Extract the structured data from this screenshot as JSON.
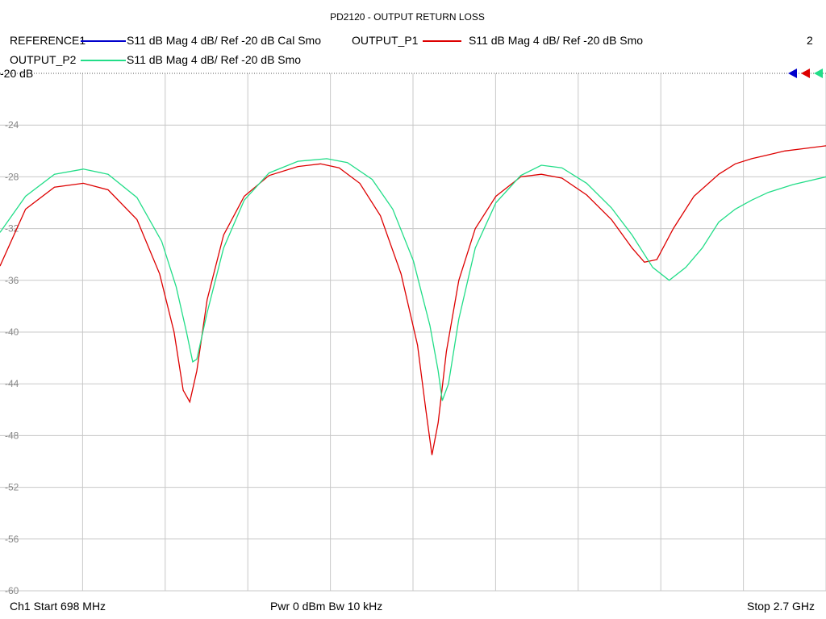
{
  "chart_data": {
    "type": "line",
    "title": "PD2120 - OUTPUT RETURN LOSS",
    "ylim": [
      -60,
      -20
    ],
    "yticks": [
      -24,
      -28,
      -32,
      -36,
      -40,
      -44,
      -48,
      -52,
      -56,
      -60
    ],
    "ref_label": "-20 dB",
    "xlim_mhz": [
      698,
      2700
    ],
    "grid": true,
    "legend_position": "top",
    "channel_number": "2",
    "legend": [
      {
        "name": "REFERENCE1",
        "desc": "S11  dB Mag  4 dB/ Ref -20 dB  Cal Smo",
        "color": "#0000cc"
      },
      {
        "name": "OUTPUT_P1",
        "desc": "S11  dB Mag  4 dB/ Ref -20 dB  Smo",
        "color": "#dd0000"
      },
      {
        "name": "OUTPUT_P2",
        "desc": "S11  dB Mag  4 dB/ Ref -20 dB  Smo",
        "color": "#22dd88"
      }
    ],
    "series": [
      {
        "name": "OUTPUT_P1",
        "color": "#dd0000",
        "points": [
          [
            698,
            -34.9
          ],
          [
            760,
            -30.5
          ],
          [
            830,
            -28.8
          ],
          [
            900,
            -28.5
          ],
          [
            960,
            -29.0
          ],
          [
            1030,
            -31.3
          ],
          [
            1085,
            -35.5
          ],
          [
            1120,
            -40.0
          ],
          [
            1142,
            -44.5
          ],
          [
            1158,
            -45.4
          ],
          [
            1175,
            -43.0
          ],
          [
            1200,
            -37.5
          ],
          [
            1240,
            -32.5
          ],
          [
            1290,
            -29.5
          ],
          [
            1350,
            -27.9
          ],
          [
            1420,
            -27.2
          ],
          [
            1475,
            -27.0
          ],
          [
            1520,
            -27.3
          ],
          [
            1570,
            -28.5
          ],
          [
            1620,
            -31.0
          ],
          [
            1670,
            -35.5
          ],
          [
            1710,
            -41.0
          ],
          [
            1730,
            -46.0
          ],
          [
            1745,
            -49.5
          ],
          [
            1760,
            -47.0
          ],
          [
            1780,
            -41.5
          ],
          [
            1810,
            -36.0
          ],
          [
            1850,
            -32.0
          ],
          [
            1900,
            -29.5
          ],
          [
            1960,
            -28.0
          ],
          [
            2010,
            -27.8
          ],
          [
            2060,
            -28.1
          ],
          [
            2120,
            -29.4
          ],
          [
            2180,
            -31.3
          ],
          [
            2230,
            -33.5
          ],
          [
            2260,
            -34.6
          ],
          [
            2290,
            -34.4
          ],
          [
            2330,
            -32.0
          ],
          [
            2380,
            -29.5
          ],
          [
            2440,
            -27.8
          ],
          [
            2480,
            -27.0
          ],
          [
            2520,
            -26.6
          ],
          [
            2560,
            -26.3
          ],
          [
            2600,
            -26.0
          ],
          [
            2650,
            -25.8
          ],
          [
            2700,
            -25.6
          ]
        ]
      },
      {
        "name": "OUTPUT_P2",
        "color": "#22dd88",
        "points": [
          [
            698,
            -32.3
          ],
          [
            760,
            -29.5
          ],
          [
            830,
            -27.8
          ],
          [
            900,
            -27.4
          ],
          [
            960,
            -27.8
          ],
          [
            1030,
            -29.6
          ],
          [
            1090,
            -33.0
          ],
          [
            1125,
            -36.5
          ],
          [
            1150,
            -40.0
          ],
          [
            1165,
            -42.3
          ],
          [
            1175,
            -42.1
          ],
          [
            1200,
            -38.5
          ],
          [
            1240,
            -33.5
          ],
          [
            1290,
            -29.8
          ],
          [
            1350,
            -27.7
          ],
          [
            1420,
            -26.8
          ],
          [
            1490,
            -26.6
          ],
          [
            1540,
            -26.9
          ],
          [
            1600,
            -28.2
          ],
          [
            1650,
            -30.5
          ],
          [
            1700,
            -34.5
          ],
          [
            1740,
            -39.5
          ],
          [
            1760,
            -43.0
          ],
          [
            1770,
            -45.3
          ],
          [
            1785,
            -44.0
          ],
          [
            1810,
            -39.0
          ],
          [
            1850,
            -33.5
          ],
          [
            1900,
            -30.0
          ],
          [
            1960,
            -27.9
          ],
          [
            2010,
            -27.1
          ],
          [
            2060,
            -27.3
          ],
          [
            2120,
            -28.5
          ],
          [
            2180,
            -30.4
          ],
          [
            2230,
            -32.5
          ],
          [
            2280,
            -35.0
          ],
          [
            2320,
            -36.0
          ],
          [
            2360,
            -35.0
          ],
          [
            2400,
            -33.5
          ],
          [
            2440,
            -31.5
          ],
          [
            2480,
            -30.5
          ],
          [
            2520,
            -29.8
          ],
          [
            2560,
            -29.2
          ],
          [
            2620,
            -28.6
          ],
          [
            2700,
            -28.0
          ]
        ]
      }
    ]
  },
  "footer": {
    "start": "Ch1  Start  698 MHz",
    "power": "Pwr  0 dBm  Bw  10 kHz",
    "stop": "Stop  2.7 GHz"
  }
}
